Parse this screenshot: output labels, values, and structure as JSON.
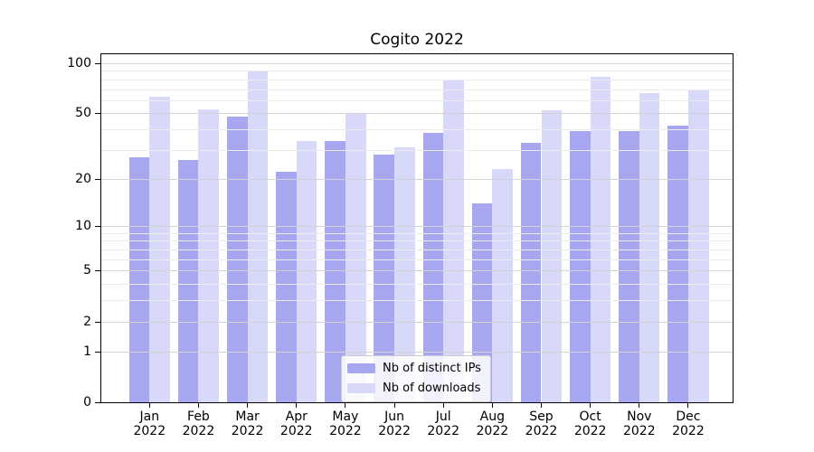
{
  "title": "Cogito 2022",
  "legend": {
    "items": [
      {
        "label": "Nb of distinct IPs",
        "color": "#a6a6f1"
      },
      {
        "label": "Nb of downloads",
        "color": "#d8d8f8"
      }
    ]
  },
  "chart_data": {
    "type": "bar",
    "title": "Cogito 2022",
    "categories": [
      "Jan",
      "Feb",
      "Mar",
      "Apr",
      "May",
      "Jun",
      "Jul",
      "Aug",
      "Sep",
      "Oct",
      "Nov",
      "Dec"
    ],
    "category_year": "2022",
    "series": [
      {
        "name": "Nb of distinct IPs",
        "color": "#a6a6f1",
        "values": [
          27,
          26,
          48,
          22,
          34,
          28,
          38,
          14,
          33,
          39,
          39,
          42
        ]
      },
      {
        "name": "Nb of downloads",
        "color": "#d8d8f8",
        "values": [
          63,
          53,
          90,
          34,
          50,
          31,
          79,
          23,
          52,
          83,
          66,
          70
        ]
      }
    ],
    "xlabel": "",
    "ylabel": "",
    "yscale": "symlog",
    "yticks": [
      0,
      1,
      2,
      5,
      10,
      20,
      50,
      100
    ],
    "minor_yticks": [
      3,
      4,
      6,
      7,
      8,
      9,
      30,
      40,
      60,
      70,
      80,
      90
    ],
    "ylim": [
      0,
      113
    ],
    "grid": true,
    "legend_position": "lower center"
  }
}
